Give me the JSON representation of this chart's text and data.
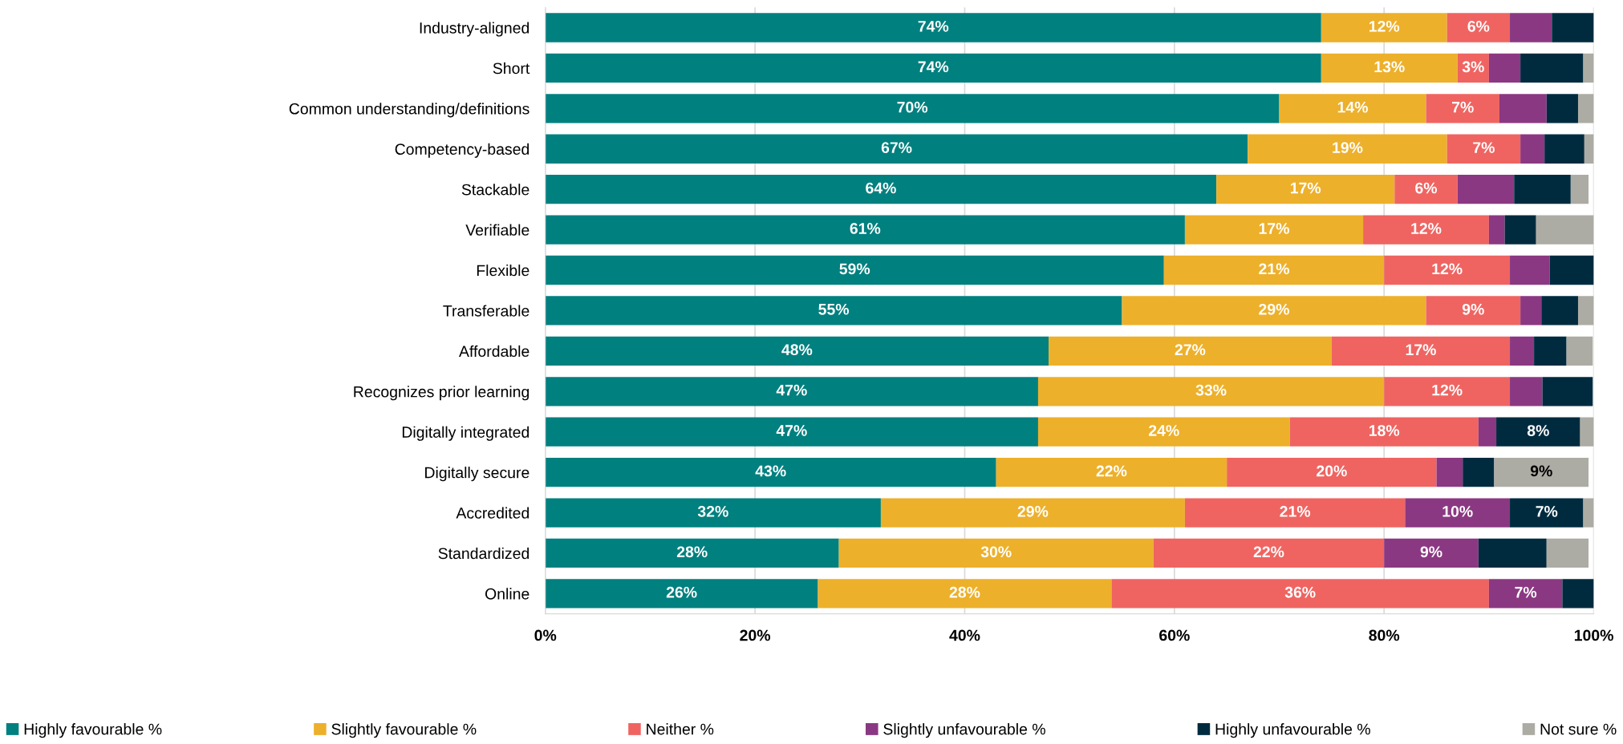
{
  "chart_data": {
    "type": "bar",
    "orientation": "horizontal",
    "stacked": true,
    "categories": [
      "Industry-aligned",
      "Short",
      "Common understanding/definitions",
      "Competency-based",
      "Stackable",
      "Verifiable",
      "Flexible",
      "Transferable",
      "Affordable",
      "Recognizes prior learning",
      "Digitally integrated",
      "Digitally secure",
      "Accredited",
      "Standardized",
      "Online"
    ],
    "series": [
      {
        "name": "Highly favourable %",
        "color": "#00807f",
        "values": [
          74,
          74,
          70,
          67,
          64,
          61,
          59,
          55,
          48,
          47,
          47,
          43,
          32,
          28,
          26
        ],
        "value_labels": [
          "74%",
          "74%",
          "70%",
          "67%",
          "64%",
          "61%",
          "59%",
          "55%",
          "48%",
          "47%",
          "47%",
          "43%",
          "32%",
          "28%",
          "26%"
        ]
      },
      {
        "name": "Slightly favourable %",
        "color": "#edb02b",
        "values": [
          12,
          13,
          14,
          19,
          17,
          17,
          21,
          29,
          27,
          33,
          24,
          22,
          29,
          30,
          28
        ],
        "value_labels": [
          "12%",
          "13%",
          "14%",
          "19%",
          "17%",
          "17%",
          "21%",
          "29%",
          "27%",
          "33%",
          "24%",
          "22%",
          "29%",
          "30%",
          "28%"
        ]
      },
      {
        "name": "Neither %",
        "color": "#ef6461",
        "values": [
          6,
          3,
          7,
          7,
          6,
          12,
          12,
          9,
          17,
          12,
          18,
          20,
          21,
          22,
          36
        ],
        "value_labels": [
          "6%",
          "3%",
          "7%",
          "7%",
          "6%",
          "12%",
          "12%",
          "9%",
          "17%",
          "12%",
          "18%",
          "20%",
          "21%",
          "22%",
          "36%"
        ]
      },
      {
        "name": "Slightly unfavourable %",
        "color": "#8b3882",
        "values": [
          4,
          3,
          4.5,
          2.3,
          5.4,
          1.5,
          3.8,
          2,
          2.3,
          3.1,
          1.7,
          2.5,
          10,
          9,
          7
        ],
        "value_labels": [
          null,
          null,
          null,
          null,
          null,
          null,
          null,
          null,
          null,
          null,
          null,
          null,
          "10%",
          "9%",
          "7%"
        ]
      },
      {
        "name": "Highly unfavourable %",
        "color": "#002b3f",
        "values": [
          4,
          6,
          3,
          3.8,
          5.4,
          3,
          4.2,
          3.5,
          3.1,
          4.8,
          8,
          3,
          7,
          6.5,
          3
        ],
        "value_labels": [
          null,
          null,
          null,
          null,
          null,
          null,
          null,
          null,
          null,
          null,
          "8%",
          null,
          "7%",
          null,
          null
        ]
      },
      {
        "name": "Not sure %",
        "color": "#adaca4",
        "values": [
          null,
          1,
          1.5,
          0.9,
          1.7,
          5.5,
          null,
          1.5,
          2.5,
          null,
          1.3,
          9,
          1,
          4,
          null
        ],
        "value_labels": [
          null,
          null,
          null,
          null,
          null,
          null,
          null,
          null,
          null,
          null,
          null,
          "9%",
          null,
          null,
          null
        ]
      }
    ],
    "xlim": [
      0,
      100
    ],
    "xticks": [
      {
        "value": 0,
        "label": "0%"
      },
      {
        "value": 20,
        "label": "20%"
      },
      {
        "value": 40,
        "label": "40%"
      },
      {
        "value": 60,
        "label": "60%"
      },
      {
        "value": 80,
        "label": "80%"
      },
      {
        "value": 100,
        "label": "100%"
      }
    ],
    "grid": "x",
    "legend": "bottom"
  }
}
